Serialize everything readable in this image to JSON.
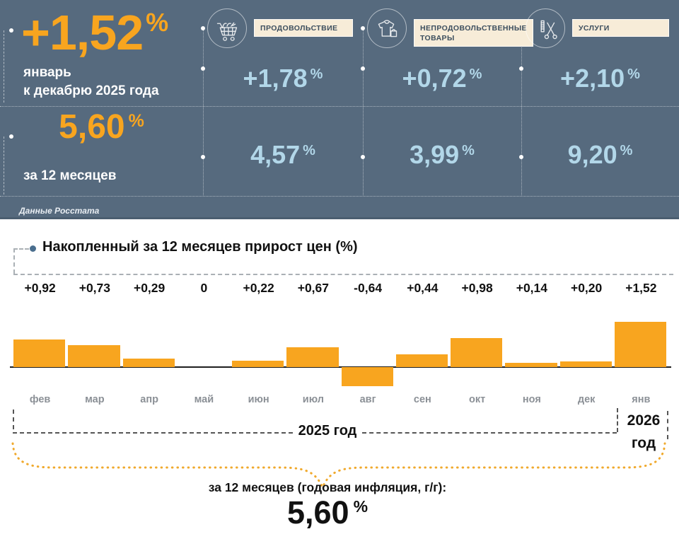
{
  "colors": {
    "header_bg": "#566a7e",
    "accent_orange": "#f8a51f",
    "value_light_blue": "#b2d7e9",
    "label_box_bg": "#f7ecd8",
    "bar_color": "#f8a51f"
  },
  "header": {
    "main_value": "+1,52",
    "main_pct": "%",
    "main_caption_line1": "январь",
    "main_caption_line2": "к декабрю 2025 года",
    "year_value": "5,60",
    "year_pct": "%",
    "year_caption": "за 12 месяцев",
    "source": "Данные Росстата",
    "categories": [
      {
        "label": "ПРОДОВОЛЬСТВИЕ",
        "icon": "shopping-cart-icon",
        "month_value": "+1,78",
        "month_pct": "%",
        "year_value": "4,57",
        "year_pct": "%"
      },
      {
        "label": "НЕПРОДОВОЛЬСТВЕННЫЕ ТОВАРЫ",
        "icon": "clothing-bag-icon",
        "month_value": "+0,72",
        "month_pct": "%",
        "year_value": "3,99",
        "year_pct": "%"
      },
      {
        "label": "УСЛУГИ",
        "icon": "scissors-comb-icon",
        "month_value": "+2,10",
        "month_pct": "%",
        "year_value": "9,20",
        "year_pct": "%"
      }
    ]
  },
  "chart_data": {
    "type": "bar",
    "title": "Накопленный за 12 месяцев прирост цен (%)",
    "categories": [
      "фев",
      "мар",
      "апр",
      "май",
      "июн",
      "июл",
      "авг",
      "сен",
      "окт",
      "ноя",
      "дек",
      "янв"
    ],
    "values": [
      0.92,
      0.73,
      0.29,
      0,
      0.22,
      0.67,
      -0.64,
      0.44,
      0.98,
      0.14,
      0.2,
      1.52
    ],
    "value_labels": [
      "+0,92",
      "+0,73",
      "+0,29",
      "0",
      "+0,22",
      "+0,67",
      "-0,64",
      "+0,44",
      "+0,98",
      "+0,14",
      "+0,20",
      "+1,52"
    ],
    "bar_color": "#f8a51f",
    "baseline": 0,
    "ylim": [
      -0.64,
      1.52
    ],
    "grid": false,
    "legend": false,
    "year_left_label": "2025 год",
    "year_right_label": "2026 год",
    "footer_label": "за 12 месяцев (годовая инфляция, г/г):",
    "footer_value": "5,60",
    "footer_pct": "%"
  }
}
